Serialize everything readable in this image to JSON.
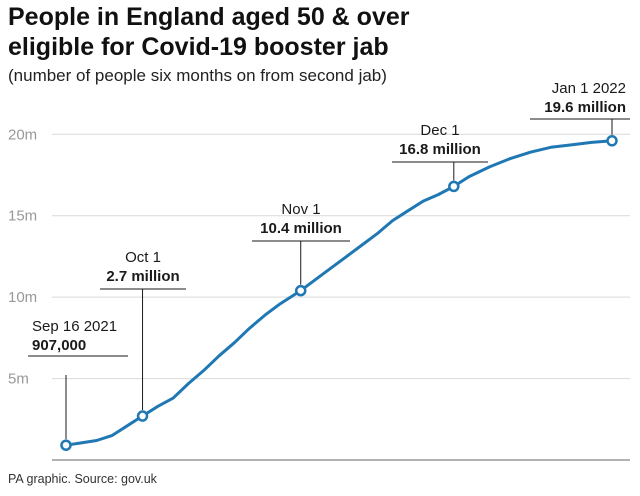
{
  "header": {
    "title_line1": "People in England aged 50 & over",
    "title_line2": "eligible for Covid-19 booster jab",
    "subtitle": "(number of people six months on from second jab)"
  },
  "footer": {
    "source": "PA graphic. Source: gov.uk"
  },
  "colors": {
    "line": "#1f78b4",
    "marker_fill": "#ffffff",
    "grid": "#d9d9d9",
    "baseline": "#999999",
    "leader": "#1a1a1a"
  },
  "chart_data": {
    "type": "line",
    "title": "People in England aged 50 & over eligible for Covid-19 booster jab",
    "subtitle": "(number of people six months on from second jab)",
    "y_unit": "million people",
    "ylim": [
      0,
      21
    ],
    "y_ticks": [
      {
        "value": 5,
        "label": "5m"
      },
      {
        "value": 10,
        "label": "10m"
      },
      {
        "value": 15,
        "label": "15m"
      },
      {
        "value": 20,
        "label": "20m"
      }
    ],
    "xlim": [
      "2021-09-16",
      "2022-01-01"
    ],
    "grid": true,
    "series": [
      {
        "points": [
          {
            "x": "2021-09-16",
            "y": 0.907
          },
          {
            "x": "2021-09-19",
            "y": 1.05
          },
          {
            "x": "2021-09-22",
            "y": 1.2
          },
          {
            "x": "2021-09-25",
            "y": 1.5
          },
          {
            "x": "2021-09-28",
            "y": 2.1
          },
          {
            "x": "2021-10-01",
            "y": 2.7
          },
          {
            "x": "2021-10-04",
            "y": 3.3
          },
          {
            "x": "2021-10-07",
            "y": 3.8
          },
          {
            "x": "2021-10-10",
            "y": 4.7
          },
          {
            "x": "2021-10-13",
            "y": 5.5
          },
          {
            "x": "2021-10-16",
            "y": 6.4
          },
          {
            "x": "2021-10-19",
            "y": 7.2
          },
          {
            "x": "2021-10-22",
            "y": 8.1
          },
          {
            "x": "2021-10-25",
            "y": 8.9
          },
          {
            "x": "2021-10-28",
            "y": 9.6
          },
          {
            "x": "2021-11-01",
            "y": 10.4
          },
          {
            "x": "2021-11-04",
            "y": 11.1
          },
          {
            "x": "2021-11-07",
            "y": 11.8
          },
          {
            "x": "2021-11-10",
            "y": 12.5
          },
          {
            "x": "2021-11-13",
            "y": 13.2
          },
          {
            "x": "2021-11-16",
            "y": 13.9
          },
          {
            "x": "2021-11-19",
            "y": 14.7
          },
          {
            "x": "2021-11-22",
            "y": 15.3
          },
          {
            "x": "2021-11-25",
            "y": 15.9
          },
          {
            "x": "2021-11-28",
            "y": 16.3
          },
          {
            "x": "2021-12-01",
            "y": 16.8
          },
          {
            "x": "2021-12-04",
            "y": 17.4
          },
          {
            "x": "2021-12-08",
            "y": 18.0
          },
          {
            "x": "2021-12-12",
            "y": 18.5
          },
          {
            "x": "2021-12-16",
            "y": 18.9
          },
          {
            "x": "2021-12-20",
            "y": 19.2
          },
          {
            "x": "2021-12-24",
            "y": 19.35
          },
          {
            "x": "2021-12-28",
            "y": 19.5
          },
          {
            "x": "2022-01-01",
            "y": 19.6
          }
        ]
      }
    ],
    "annotations": [
      {
        "x": "2021-09-16",
        "y": 0.907,
        "date_label": "Sep 16 2021",
        "value_label": "907,000"
      },
      {
        "x": "2021-10-01",
        "y": 2.7,
        "date_label": "Oct 1",
        "value_label": "2.7 million"
      },
      {
        "x": "2021-11-01",
        "y": 10.4,
        "date_label": "Nov 1",
        "value_label": "10.4 million"
      },
      {
        "x": "2021-12-01",
        "y": 16.8,
        "date_label": "Dec 1",
        "value_label": "16.8 million"
      },
      {
        "x": "2022-01-01",
        "y": 19.6,
        "date_label": "Jan 1 2022",
        "value_label": "19.6 million"
      }
    ]
  }
}
